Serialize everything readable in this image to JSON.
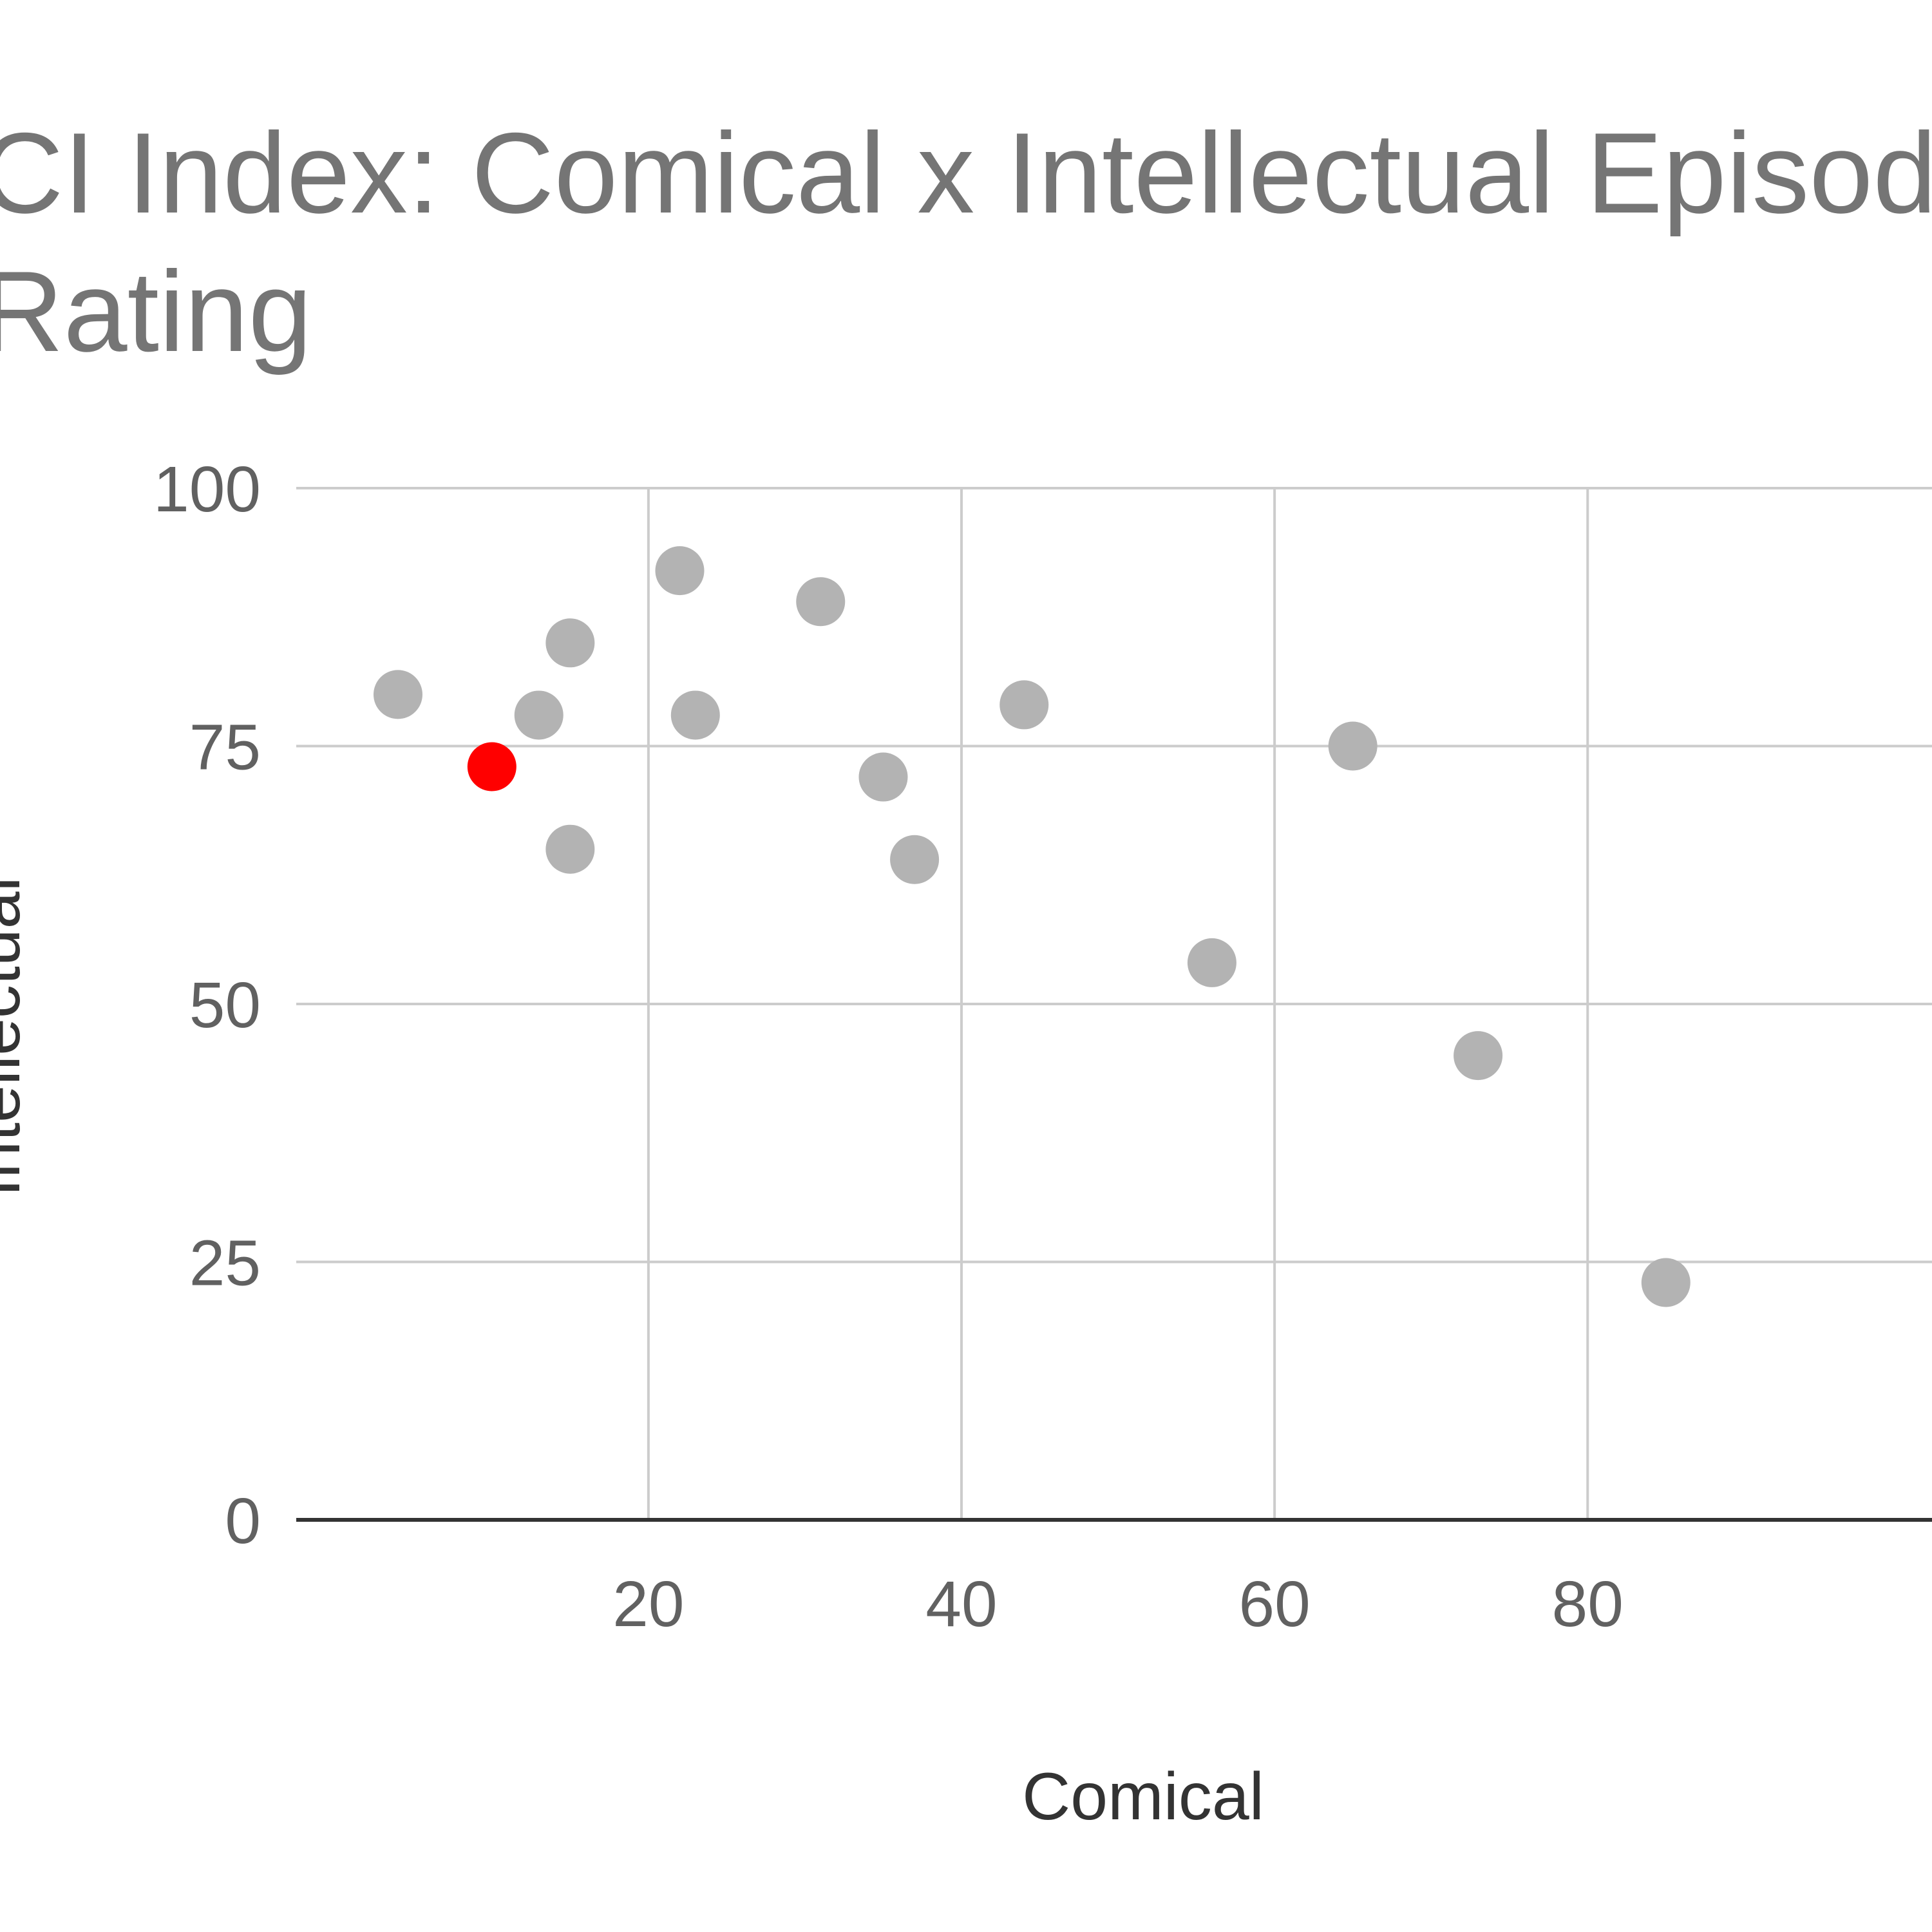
{
  "chart_data": {
    "type": "scatter",
    "title_lines": [
      "CI Index: Comical x Intellectual Episode",
      "Rating"
    ],
    "xlabel": "Comical",
    "ylabel": "Intellectual",
    "xlim": [
      -2.5,
      102
    ],
    "ylim": [
      0,
      100
    ],
    "x_ticks": [
      20,
      40,
      60,
      80
    ],
    "x_tick_labels": [
      "20",
      "40",
      "60",
      "80"
    ],
    "y_ticks": [
      0,
      25,
      50,
      75,
      100
    ],
    "y_tick_labels": [
      "0",
      "25",
      "50",
      "75",
      "100"
    ],
    "grid": true,
    "colors": {
      "point": "#b3b3b3",
      "highlight": "#ff0000"
    },
    "points": [
      {
        "x": 4,
        "y": 80
      },
      {
        "x": 10,
        "y": 73,
        "highlight": true
      },
      {
        "x": 13,
        "y": 78
      },
      {
        "x": 15,
        "y": 85
      },
      {
        "x": 15,
        "y": 65
      },
      {
        "x": 22,
        "y": 92
      },
      {
        "x": 23,
        "y": 78
      },
      {
        "x": 31,
        "y": 89
      },
      {
        "x": 35,
        "y": 72
      },
      {
        "x": 37,
        "y": 64
      },
      {
        "x": 44,
        "y": 79
      },
      {
        "x": 56,
        "y": 54
      },
      {
        "x": 65,
        "y": 75
      },
      {
        "x": 73,
        "y": 45
      },
      {
        "x": 85,
        "y": 23
      }
    ]
  }
}
